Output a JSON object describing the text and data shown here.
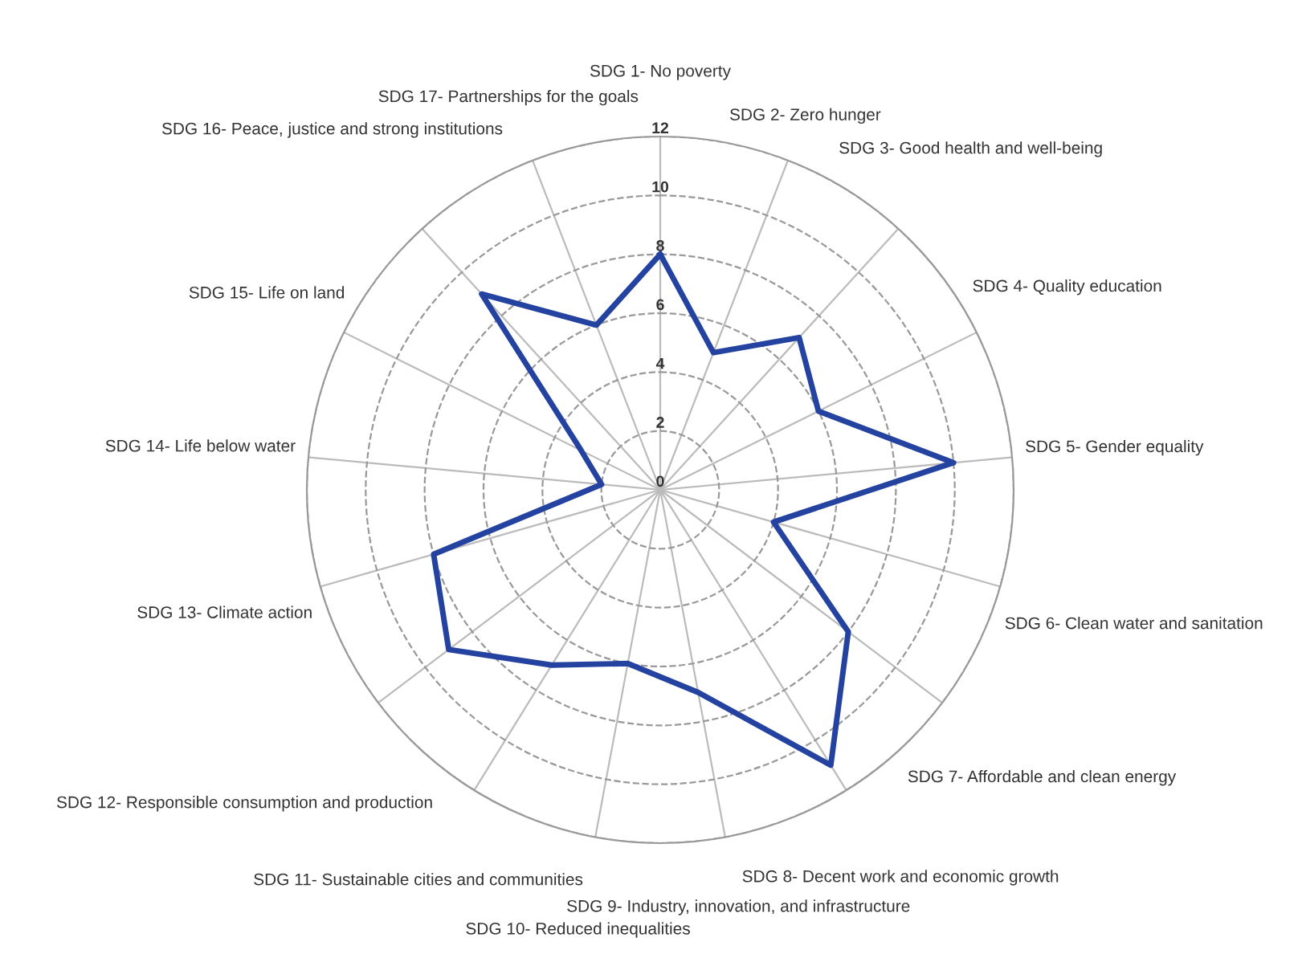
{
  "chart_data": {
    "type": "radar",
    "categories": [
      "SDG 1- No poverty",
      "SDG 2- Zero hunger",
      "SDG 3- Good health and well-being",
      "SDG 4- Quality education",
      "SDG 5- Gender equality",
      "SDG 6- Clean water and sanitation",
      "SDG 7- Affordable and clean energy",
      "SDG 8- Decent work and economic growth",
      "SDG 9- Industry, innovation, and infrastructure",
      "SDG 10- Reduced inequalities",
      "SDG 11- Sustainable cities and communities",
      "SDG 12- Responsible consumption and production",
      "SDG 13- Climate action",
      "SDG 14- Life below water",
      "SDG 15- Life on land",
      "SDG 16- Peace, justice and strong institutions",
      "SDG 17- Partnerships for the goals"
    ],
    "series": [
      {
        "color": "#2443a0",
        "values": [
          8,
          5,
          7,
          6,
          10,
          4,
          8,
          11,
          7,
          6,
          7,
          9,
          8,
          2,
          3,
          9,
          6
        ]
      }
    ],
    "ylim": [
      0,
      12
    ],
    "yticks": [
      0,
      2,
      4,
      6,
      8,
      10,
      12
    ],
    "grid": true,
    "line_style": "solid"
  }
}
